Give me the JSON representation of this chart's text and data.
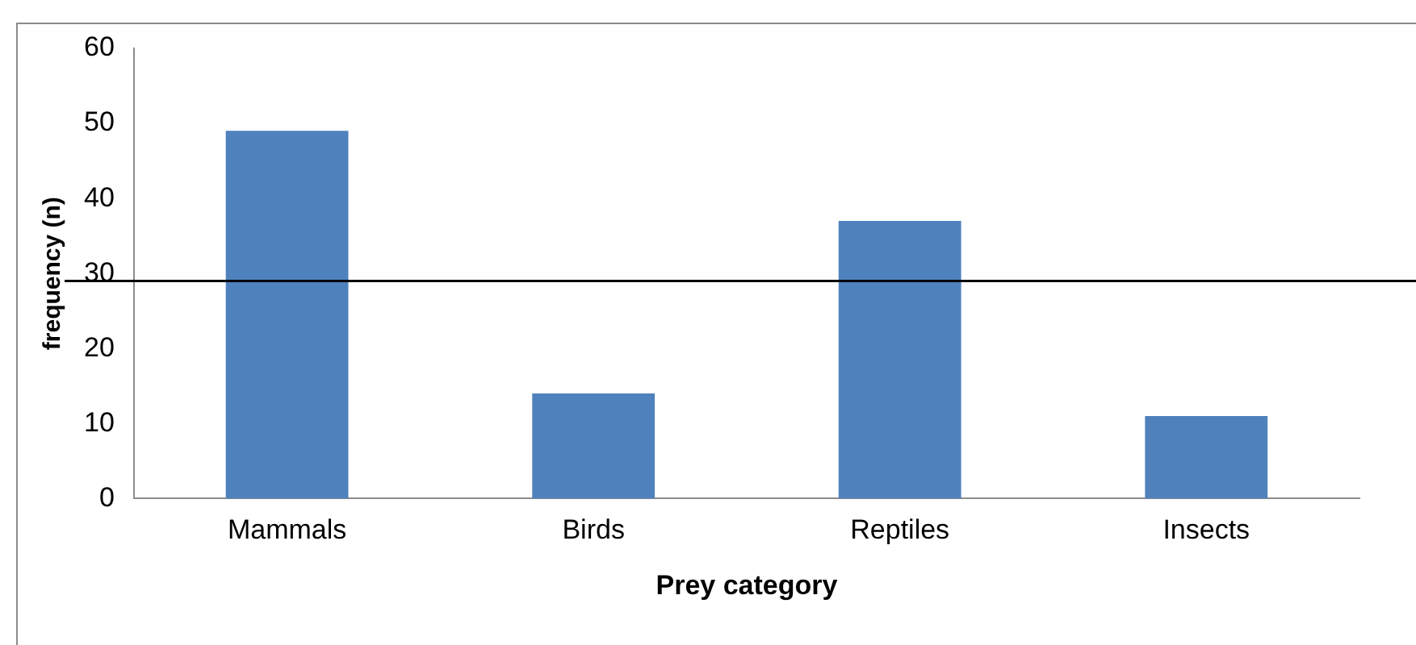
{
  "chart_data": {
    "type": "bar",
    "xlabel": "Prey category",
    "ylabel": "frequency (n)",
    "categories": [
      "Mammals",
      "Birds",
      "Reptiles",
      "Insects"
    ],
    "values": [
      49,
      14,
      37,
      11
    ],
    "color": "#4f81bd",
    "ylim": [
      0,
      60
    ],
    "yticks": [
      0,
      10,
      20,
      30,
      40,
      50,
      60
    ],
    "grid": false,
    "ref_lines": [
      {
        "axis": "y",
        "value": 29,
        "color": "#000000"
      }
    ]
  }
}
